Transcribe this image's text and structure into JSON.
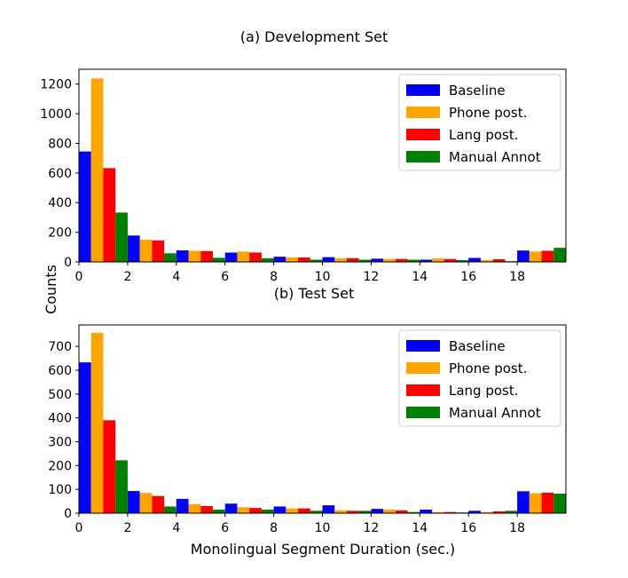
{
  "figure": {
    "ylabel": "Counts",
    "xlabel": "Monolingual Segment Duration (sec.)"
  },
  "chart_data": [
    {
      "type": "bar",
      "title": "(a) Development Set",
      "xlabel": "",
      "ylabel": "Counts",
      "xlim": [
        0,
        20
      ],
      "ylim": [
        0,
        1300
      ],
      "xticks": [
        0,
        2,
        4,
        6,
        8,
        10,
        12,
        14,
        16,
        18
      ],
      "yticks": [
        0,
        200,
        400,
        600,
        800,
        1000,
        1200
      ],
      "bin_starts": [
        0,
        2,
        4,
        6,
        8,
        10,
        12,
        14,
        16,
        18
      ],
      "bin_width": 2,
      "legend_position": "top-right",
      "series": [
        {
          "name": "Baseline",
          "color": "#0000ff",
          "values": [
            745,
            178,
            78,
            63,
            35,
            32,
            22,
            15,
            27,
            77
          ]
        },
        {
          "name": "Phone post.",
          "color": "#ffa500",
          "values": [
            1238,
            150,
            75,
            70,
            30,
            25,
            20,
            24,
            13,
            70
          ]
        },
        {
          "name": "Lang post.",
          "color": "#ff0000",
          "values": [
            633,
            145,
            73,
            63,
            30,
            25,
            20,
            20,
            18,
            75
          ]
        },
        {
          "name": "Manual Annot",
          "color": "#008000",
          "values": [
            333,
            58,
            28,
            25,
            15,
            15,
            15,
            12,
            5,
            95
          ]
        }
      ]
    },
    {
      "type": "bar",
      "title": "(b) Test Set",
      "xlabel": "Monolingual Segment Duration (sec.)",
      "ylabel": "Counts",
      "xlim": [
        0,
        20
      ],
      "ylim": [
        0,
        790
      ],
      "xticks": [
        0,
        2,
        4,
        6,
        8,
        10,
        12,
        14,
        16,
        18
      ],
      "yticks": [
        0,
        100,
        200,
        300,
        400,
        500,
        600,
        700
      ],
      "bin_starts": [
        0,
        2,
        4,
        6,
        8,
        10,
        12,
        14,
        16,
        18
      ],
      "bin_width": 2,
      "legend_position": "top-right",
      "series": [
        {
          "name": "Baseline",
          "color": "#0000ff",
          "values": [
            633,
            93,
            60,
            40,
            28,
            33,
            18,
            15,
            10,
            92
          ]
        },
        {
          "name": "Phone post.",
          "color": "#ffa500",
          "values": [
            757,
            85,
            38,
            25,
            20,
            12,
            15,
            5,
            5,
            84
          ]
        },
        {
          "name": "Lang post.",
          "color": "#ff0000",
          "values": [
            390,
            72,
            30,
            22,
            20,
            10,
            12,
            5,
            8,
            86
          ]
        },
        {
          "name": "Manual Annot",
          "color": "#008000",
          "values": [
            222,
            28,
            15,
            15,
            10,
            10,
            5,
            3,
            10,
            82
          ]
        }
      ]
    }
  ]
}
